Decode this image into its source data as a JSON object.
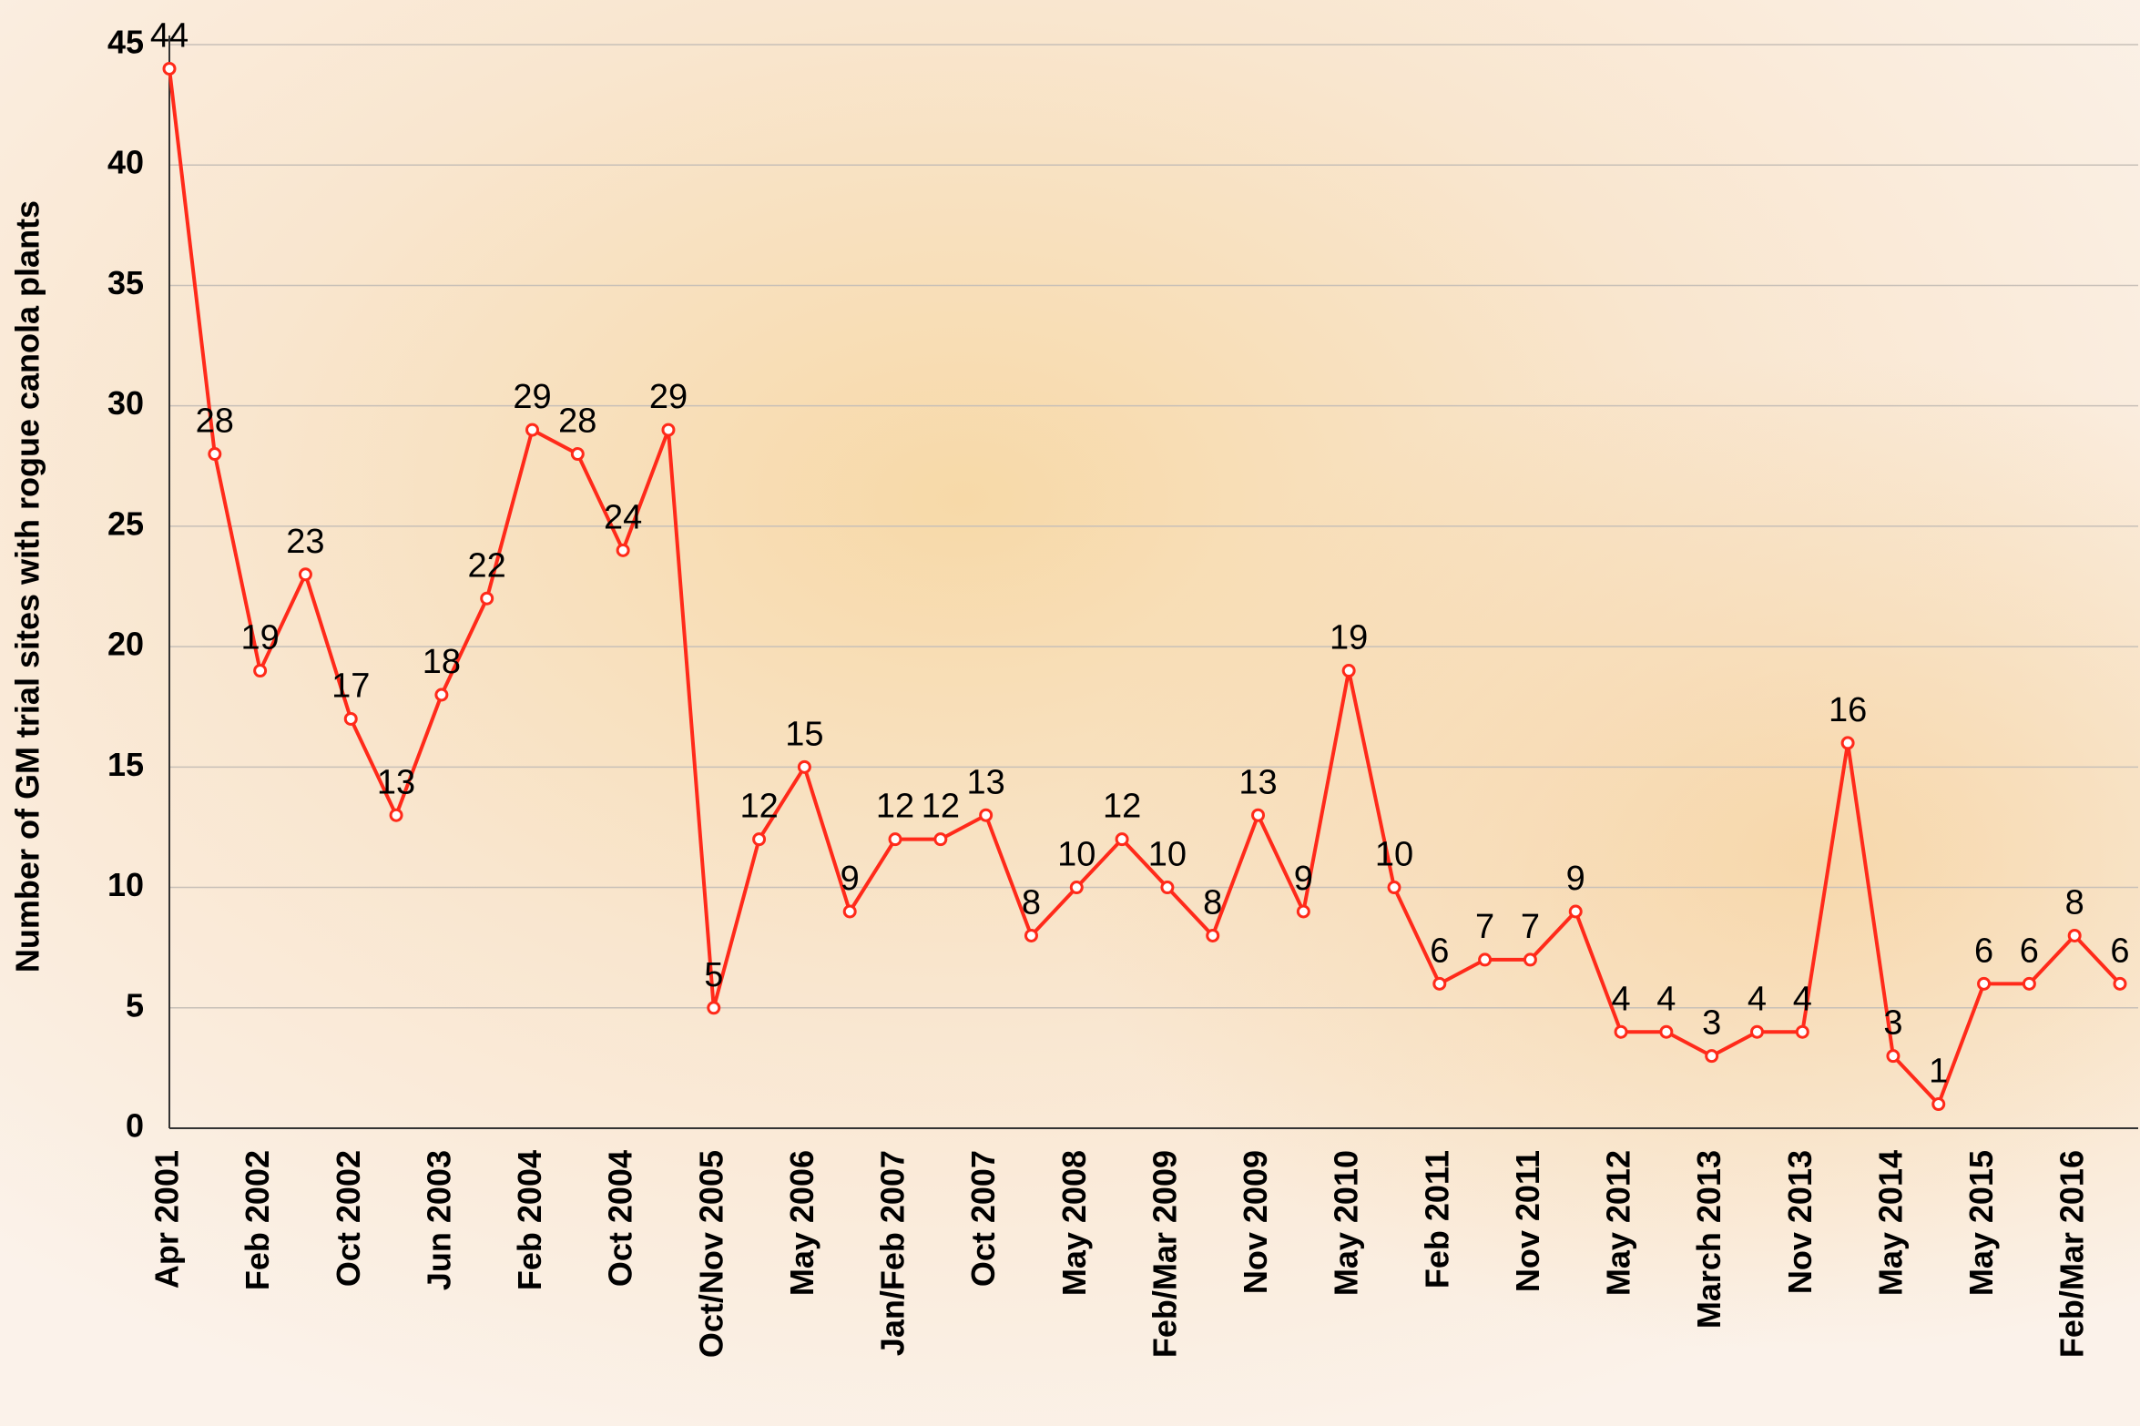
{
  "chart_data": {
    "type": "line",
    "y_label": "Number of GM trial sites with rogue canola plants",
    "categories": [
      "Apr 2001",
      null,
      "Feb 2002",
      null,
      "Oct 2002",
      null,
      "Jun 2003",
      null,
      "Feb 2004",
      null,
      "Oct 2004",
      null,
      "Oct/Nov 2005",
      null,
      "May 2006",
      null,
      "Jan/Feb 2007",
      null,
      "Oct 2007",
      null,
      "May 2008",
      null,
      "Feb/Mar 2009",
      null,
      "Nov 2009",
      null,
      "May 2010",
      null,
      "Feb 2011",
      null,
      "Nov 2011",
      null,
      "May 2012",
      null,
      "March 2013",
      null,
      "Nov 2013",
      null,
      "May 2014",
      null,
      "May 2015",
      null,
      "Feb/Mar 2016",
      null
    ],
    "values": [
      44,
      28,
      19,
      23,
      17,
      13,
      18,
      22,
      29,
      28,
      24,
      29,
      5,
      12,
      15,
      9,
      12,
      12,
      13,
      8,
      10,
      12,
      10,
      8,
      13,
      9,
      19,
      10,
      6,
      7,
      7,
      9,
      4,
      4,
      3,
      4,
      4,
      16,
      3,
      1,
      6,
      6,
      8,
      6
    ],
    "color": "#ff2a1a",
    "ylim": [
      0,
      45
    ],
    "yticks": [
      0,
      5,
      10,
      15,
      20,
      25,
      30,
      35,
      40,
      45
    ],
    "grid": true
  }
}
